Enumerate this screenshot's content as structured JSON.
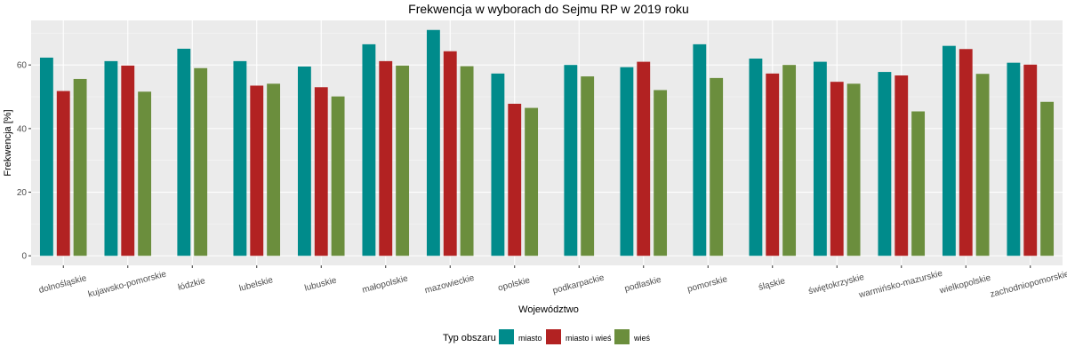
{
  "chart_data": {
    "type": "bar",
    "title": "Frekwencja w wyborach do Sejmu RP w 2019 roku",
    "xlabel": "Województwo",
    "ylabel": "Frekwencja [%]",
    "ylim": [
      -3,
      74
    ],
    "yticks": [
      0,
      20,
      40,
      60
    ],
    "grid": true,
    "legend_position": "bottom",
    "legend_title": "Typ obszaru",
    "categories": [
      "dolnośląskie",
      "kujawsko-pomorskie",
      "łódzkie",
      "lubelskie",
      "lubuskie",
      "małopolskie",
      "mazowieckie",
      "opolskie",
      "podkarpackie",
      "podlaskie",
      "pomorskie",
      "śląskie",
      "świętokrzyskie",
      "warmińsko-mazurskie",
      "wielkopolskie",
      "zachodniopomorskie"
    ],
    "series": [
      {
        "name": "miasto",
        "color": "#008b8b",
        "values": [
          62.3,
          61.2,
          65.1,
          61.2,
          59.5,
          66.5,
          71.0,
          57.3,
          60.0,
          59.3,
          66.5,
          62.0,
          61.0,
          57.8,
          66.0,
          60.7
        ]
      },
      {
        "name": "miasto i wieś",
        "color": "#b22222",
        "values": [
          51.8,
          59.8,
          null,
          53.5,
          53.0,
          61.2,
          64.3,
          47.8,
          null,
          61.0,
          null,
          57.3,
          54.7,
          56.7,
          65.0,
          60.1
        ]
      },
      {
        "name": "wieś",
        "color": "#6b8e3d",
        "values": [
          55.6,
          51.6,
          59.0,
          54.1,
          50.1,
          59.8,
          59.6,
          46.5,
          56.4,
          52.1,
          55.9,
          60.0,
          54.1,
          45.4,
          57.2,
          48.4
        ]
      }
    ]
  }
}
